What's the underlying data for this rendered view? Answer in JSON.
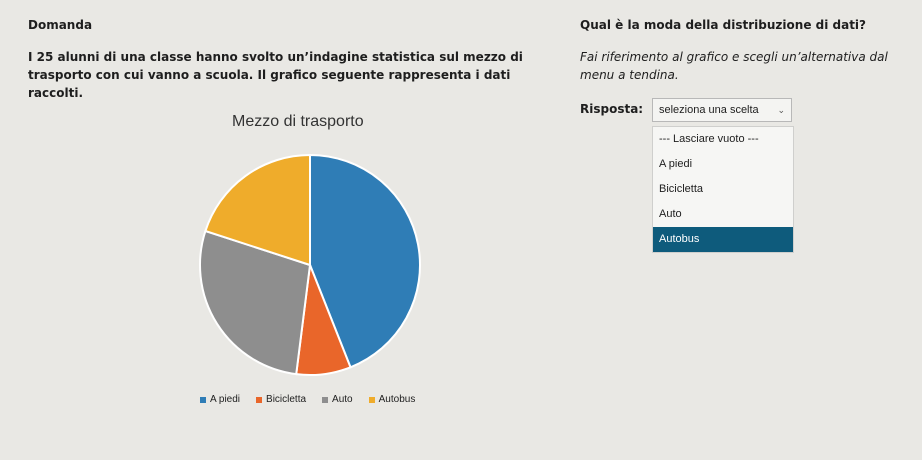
{
  "left": {
    "section_title": "Domanda",
    "question": "I 25 alunni di una classe hanno svolto un’indagine statistica sul mezzo di trasporto con cui vanno a scuola. Il grafico seguente rappresenta i dati raccolti."
  },
  "right": {
    "question_title": "Qual è la moda della distribuzione di dati?",
    "instructions": "Fai riferimento al grafico e scegli un’alternativa dal menu a tendina.",
    "answer_label": "Risposta:",
    "dropdown": {
      "placeholder": "seleziona una scelta",
      "options": [
        "--- Lasciare vuoto ---",
        "A piedi",
        "Bicicletta",
        "Auto",
        "Autobus"
      ],
      "highlighted_index": 4
    }
  },
  "chart_data": {
    "type": "pie",
    "title": "Mezzo di trasporto",
    "categories": [
      "A piedi",
      "Bicicletta",
      "Auto",
      "Autobus"
    ],
    "values": [
      11,
      2,
      7,
      5
    ],
    "colors": [
      "#2f7db6",
      "#e9662a",
      "#8e8e8e",
      "#efac2b"
    ],
    "legend_position": "bottom"
  }
}
